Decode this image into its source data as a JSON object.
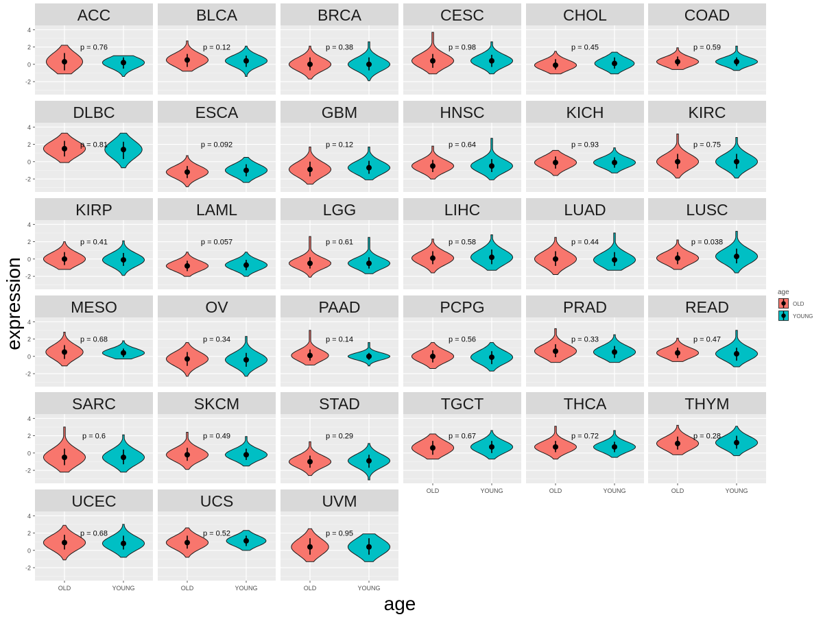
{
  "chart_data": {
    "type": "violin",
    "xlabel": "age",
    "ylabel": "expression",
    "categories": [
      "OLD",
      "YOUNG"
    ],
    "ylim": [
      -3.5,
      4.5
    ],
    "yticks": [
      -2,
      0,
      2,
      4
    ],
    "legend": {
      "title": "age",
      "position": "right",
      "items": [
        {
          "label": "OLD",
          "color": "#F8766D"
        },
        {
          "label": "YOUNG",
          "color": "#00BFC4"
        }
      ]
    },
    "panels": [
      {
        "name": "ACC",
        "p": "p = 0.76",
        "old": {
          "mean": 0.3,
          "lo": -0.7,
          "hi": 1.3,
          "min": -1.1,
          "max": 2.2,
          "width": 0.78
        },
        "young": {
          "mean": 0.2,
          "lo": -0.5,
          "hi": 0.8,
          "min": -1.4,
          "max": 1.0,
          "width": 0.9
        }
      },
      {
        "name": "BLCA",
        "p": "p = 0.12",
        "old": {
          "mean": 0.5,
          "lo": -0.3,
          "hi": 1.2,
          "min": -0.8,
          "max": 2.7,
          "width": 0.9
        },
        "young": {
          "mean": 0.4,
          "lo": -0.3,
          "hi": 1.0,
          "min": -1.4,
          "max": 2.1,
          "width": 0.9
        }
      },
      {
        "name": "BRCA",
        "p": "p = 0.38",
        "old": {
          "mean": 0.0,
          "lo": -0.7,
          "hi": 0.8,
          "min": -1.7,
          "max": 2.1,
          "width": 0.9
        },
        "young": {
          "mean": 0.0,
          "lo": -0.7,
          "hi": 0.8,
          "min": -1.9,
          "max": 2.6,
          "width": 0.9
        }
      },
      {
        "name": "CESC",
        "p": "p = 0.98",
        "old": {
          "mean": 0.4,
          "lo": -0.4,
          "hi": 1.2,
          "min": -1.1,
          "max": 3.7,
          "width": 0.9
        },
        "young": {
          "mean": 0.4,
          "lo": -0.3,
          "hi": 1.1,
          "min": -1.1,
          "max": 2.6,
          "width": 0.9
        }
      },
      {
        "name": "CHOL",
        "p": "p = 0.45",
        "old": {
          "mean": -0.1,
          "lo": -0.6,
          "hi": 0.6,
          "min": -1.1,
          "max": 1.5,
          "width": 0.9
        },
        "young": {
          "mean": 0.1,
          "lo": -0.5,
          "hi": 0.8,
          "min": -1.1,
          "max": 1.4,
          "width": 0.85
        }
      },
      {
        "name": "COAD",
        "p": "p = 0.59",
        "old": {
          "mean": 0.3,
          "lo": -0.2,
          "hi": 0.9,
          "min": -0.6,
          "max": 1.9,
          "width": 0.9
        },
        "young": {
          "mean": 0.3,
          "lo": -0.2,
          "hi": 0.8,
          "min": -0.7,
          "max": 2.1,
          "width": 0.9
        }
      },
      {
        "name": "DLBC",
        "p": "p = 0.81",
        "old": {
          "mean": 1.5,
          "lo": 0.6,
          "hi": 2.4,
          "min": -0.1,
          "max": 3.3,
          "width": 0.9
        },
        "young": {
          "mean": 1.4,
          "lo": 0.3,
          "hi": 2.3,
          "min": -0.7,
          "max": 3.3,
          "width": 0.8
        }
      },
      {
        "name": "ESCA",
        "p": "p = 0.092",
        "old": {
          "mean": -1.2,
          "lo": -1.9,
          "hi": -0.5,
          "min": -2.9,
          "max": 0.7,
          "width": 0.9
        },
        "young": {
          "mean": -1.0,
          "lo": -1.7,
          "hi": -0.3,
          "min": -2.4,
          "max": 0.5,
          "width": 0.9
        }
      },
      {
        "name": "GBM",
        "p": "p = 0.12",
        "old": {
          "mean": -0.9,
          "lo": -1.7,
          "hi": 0.0,
          "min": -2.6,
          "max": 1.7,
          "width": 0.9
        },
        "young": {
          "mean": -0.7,
          "lo": -1.4,
          "hi": 0.1,
          "min": -2.1,
          "max": 1.7,
          "width": 0.9
        }
      },
      {
        "name": "HNSC",
        "p": "p = 0.64",
        "old": {
          "mean": -0.5,
          "lo": -1.2,
          "hi": 0.2,
          "min": -2.0,
          "max": 1.8,
          "width": 0.9
        },
        "young": {
          "mean": -0.5,
          "lo": -1.2,
          "hi": 0.3,
          "min": -2.1,
          "max": 2.7,
          "width": 0.9
        }
      },
      {
        "name": "KICH",
        "p": "p = 0.93",
        "old": {
          "mean": -0.1,
          "lo": -0.8,
          "hi": 0.6,
          "min": -1.6,
          "max": 1.3,
          "width": 0.9
        },
        "young": {
          "mean": -0.1,
          "lo": -0.7,
          "hi": 0.5,
          "min": -1.3,
          "max": 1.6,
          "width": 0.9
        }
      },
      {
        "name": "KIRC",
        "p": "p = 0.75",
        "old": {
          "mean": 0.0,
          "lo": -0.8,
          "hi": 0.9,
          "min": -1.9,
          "max": 3.2,
          "width": 0.9
        },
        "young": {
          "mean": 0.0,
          "lo": -0.8,
          "hi": 0.9,
          "min": -1.9,
          "max": 2.8,
          "width": 0.9
        }
      },
      {
        "name": "KIRP",
        "p": "p = 0.41",
        "old": {
          "mean": 0.0,
          "lo": -0.7,
          "hi": 0.8,
          "min": -1.2,
          "max": 2.0,
          "width": 0.9
        },
        "young": {
          "mean": -0.1,
          "lo": -0.8,
          "hi": 0.7,
          "min": -1.9,
          "max": 2.1,
          "width": 0.9
        }
      },
      {
        "name": "LAML",
        "p": "p = 0.057",
        "old": {
          "mean": -0.8,
          "lo": -1.4,
          "hi": -0.2,
          "min": -2.0,
          "max": 0.8,
          "width": 0.9
        },
        "young": {
          "mean": -0.7,
          "lo": -1.3,
          "hi": -0.1,
          "min": -2.0,
          "max": 0.8,
          "width": 0.9
        }
      },
      {
        "name": "LGG",
        "p": "p = 0.61",
        "old": {
          "mean": -0.5,
          "lo": -1.1,
          "hi": 0.2,
          "min": -2.1,
          "max": 2.6,
          "width": 0.9
        },
        "young": {
          "mean": -0.5,
          "lo": -1.1,
          "hi": 0.2,
          "min": -1.7,
          "max": 2.5,
          "width": 0.9
        }
      },
      {
        "name": "LIHC",
        "p": "p = 0.58",
        "old": {
          "mean": 0.1,
          "lo": -0.6,
          "hi": 0.9,
          "min": -1.6,
          "max": 2.3,
          "width": 0.9
        },
        "young": {
          "mean": 0.2,
          "lo": -0.6,
          "hi": 1.1,
          "min": -1.3,
          "max": 2.8,
          "width": 0.9
        }
      },
      {
        "name": "LUAD",
        "p": "p = 0.44",
        "old": {
          "mean": 0.0,
          "lo": -0.8,
          "hi": 0.9,
          "min": -1.8,
          "max": 2.5,
          "width": 0.9
        },
        "young": {
          "mean": -0.1,
          "lo": -0.8,
          "hi": 0.8,
          "min": -1.3,
          "max": 3.0,
          "width": 0.9
        }
      },
      {
        "name": "LUSC",
        "p": "p = 0.038",
        "old": {
          "mean": 0.1,
          "lo": -0.6,
          "hi": 0.8,
          "min": -1.2,
          "max": 2.2,
          "width": 0.9
        },
        "young": {
          "mean": 0.3,
          "lo": -0.5,
          "hi": 1.2,
          "min": -1.6,
          "max": 3.2,
          "width": 0.9
        }
      },
      {
        "name": "MESO",
        "p": "p = 0.68",
        "old": {
          "mean": 0.5,
          "lo": -0.3,
          "hi": 1.3,
          "min": -1.1,
          "max": 2.8,
          "width": 0.8
        },
        "young": {
          "mean": 0.4,
          "lo": -0.1,
          "hi": 0.9,
          "min": -0.3,
          "max": 1.8,
          "width": 0.9
        }
      },
      {
        "name": "OV",
        "p": "p = 0.34",
        "old": {
          "mean": -0.3,
          "lo": -1.1,
          "hi": 0.5,
          "min": -2.3,
          "max": 1.6,
          "width": 0.9
        },
        "young": {
          "mean": -0.4,
          "lo": -1.2,
          "hi": 0.4,
          "min": -2.3,
          "max": 2.3,
          "width": 0.9
        }
      },
      {
        "name": "PAAD",
        "p": "p = 0.14",
        "old": {
          "mean": 0.1,
          "lo": -0.5,
          "hi": 0.8,
          "min": -1.0,
          "max": 3.0,
          "width": 0.8
        },
        "young": {
          "mean": 0.0,
          "lo": -0.4,
          "hi": 0.4,
          "min": -1.1,
          "max": 1.6,
          "width": 0.9
        }
      },
      {
        "name": "PCPG",
        "p": "p = 0.56",
        "old": {
          "mean": 0.0,
          "lo": -0.7,
          "hi": 0.7,
          "min": -1.4,
          "max": 1.6,
          "width": 0.9
        },
        "young": {
          "mean": -0.1,
          "lo": -0.9,
          "hi": 0.6,
          "min": -1.7,
          "max": 1.6,
          "width": 0.9
        }
      },
      {
        "name": "PRAD",
        "p": "p = 0.33",
        "old": {
          "mean": 0.6,
          "lo": -0.1,
          "hi": 1.4,
          "min": -0.7,
          "max": 3.2,
          "width": 0.9
        },
        "young": {
          "mean": 0.5,
          "lo": -0.2,
          "hi": 1.2,
          "min": -0.7,
          "max": 2.5,
          "width": 0.9
        }
      },
      {
        "name": "READ",
        "p": "p = 0.47",
        "old": {
          "mean": 0.4,
          "lo": -0.2,
          "hi": 1.0,
          "min": -0.6,
          "max": 2.1,
          "width": 0.9
        },
        "young": {
          "mean": 0.3,
          "lo": -0.5,
          "hi": 1.0,
          "min": -1.2,
          "max": 3.0,
          "width": 0.9
        }
      },
      {
        "name": "SARC",
        "p": "p = 0.6",
        "old": {
          "mean": -0.5,
          "lo": -1.4,
          "hi": 0.5,
          "min": -2.2,
          "max": 3.0,
          "width": 0.9
        },
        "young": {
          "mean": -0.5,
          "lo": -1.3,
          "hi": 0.4,
          "min": -2.2,
          "max": 2.1,
          "width": 0.9
        }
      },
      {
        "name": "SKCM",
        "p": "p = 0.49",
        "old": {
          "mean": -0.2,
          "lo": -0.9,
          "hi": 0.6,
          "min": -1.9,
          "max": 2.4,
          "width": 0.9
        },
        "young": {
          "mean": -0.2,
          "lo": -0.8,
          "hi": 0.5,
          "min": -1.5,
          "max": 1.9,
          "width": 0.9
        }
      },
      {
        "name": "STAD",
        "p": "p = 0.29",
        "old": {
          "mean": -1.0,
          "lo": -1.7,
          "hi": -0.3,
          "min": -2.6,
          "max": 1.3,
          "width": 0.9
        },
        "young": {
          "mean": -0.9,
          "lo": -1.7,
          "hi": -0.2,
          "min": -3.1,
          "max": 1.1,
          "width": 0.9
        }
      },
      {
        "name": "TGCT",
        "p": "p = 0.67",
        "old": {
          "mean": 0.6,
          "lo": -0.2,
          "hi": 1.4,
          "min": -0.7,
          "max": 2.2,
          "width": 0.9
        },
        "young": {
          "mean": 0.7,
          "lo": 0.0,
          "hi": 1.4,
          "min": -0.7,
          "max": 2.6,
          "width": 0.9
        }
      },
      {
        "name": "THCA",
        "p": "p = 0.72",
        "old": {
          "mean": 0.7,
          "lo": 0.1,
          "hi": 1.4,
          "min": -0.7,
          "max": 3.1,
          "width": 0.9
        },
        "young": {
          "mean": 0.7,
          "lo": 0.1,
          "hi": 1.3,
          "min": -0.5,
          "max": 2.6,
          "width": 0.9
        }
      },
      {
        "name": "THYM",
        "p": "p = 0.28",
        "old": {
          "mean": 1.1,
          "lo": 0.4,
          "hi": 1.9,
          "min": -0.2,
          "max": 3.2,
          "width": 0.9
        },
        "young": {
          "mean": 1.2,
          "lo": 0.5,
          "hi": 2.0,
          "min": -0.3,
          "max": 3.1,
          "width": 0.9
        }
      },
      {
        "name": "UCEC",
        "p": "p = 0.68",
        "old": {
          "mean": 0.9,
          "lo": 0.1,
          "hi": 1.8,
          "min": -1.1,
          "max": 2.9,
          "width": 0.9
        },
        "young": {
          "mean": 0.8,
          "lo": 0.1,
          "hi": 1.7,
          "min": -0.8,
          "max": 3.0,
          "width": 0.9
        }
      },
      {
        "name": "UCS",
        "p": "p = 0.52",
        "old": {
          "mean": 0.9,
          "lo": 0.2,
          "hi": 1.7,
          "min": -0.8,
          "max": 2.6,
          "width": 0.9
        },
        "young": {
          "mean": 1.1,
          "lo": 0.5,
          "hi": 1.7,
          "min": 0.0,
          "max": 2.3,
          "width": 0.85
        }
      },
      {
        "name": "UVM",
        "p": "p = 0.95",
        "old": {
          "mean": 0.4,
          "lo": -0.5,
          "hi": 1.4,
          "min": -1.3,
          "max": 2.5,
          "width": 0.8
        },
        "young": {
          "mean": 0.4,
          "lo": -0.5,
          "hi": 1.4,
          "min": -1.3,
          "max": 1.9,
          "width": 0.9
        }
      }
    ]
  }
}
